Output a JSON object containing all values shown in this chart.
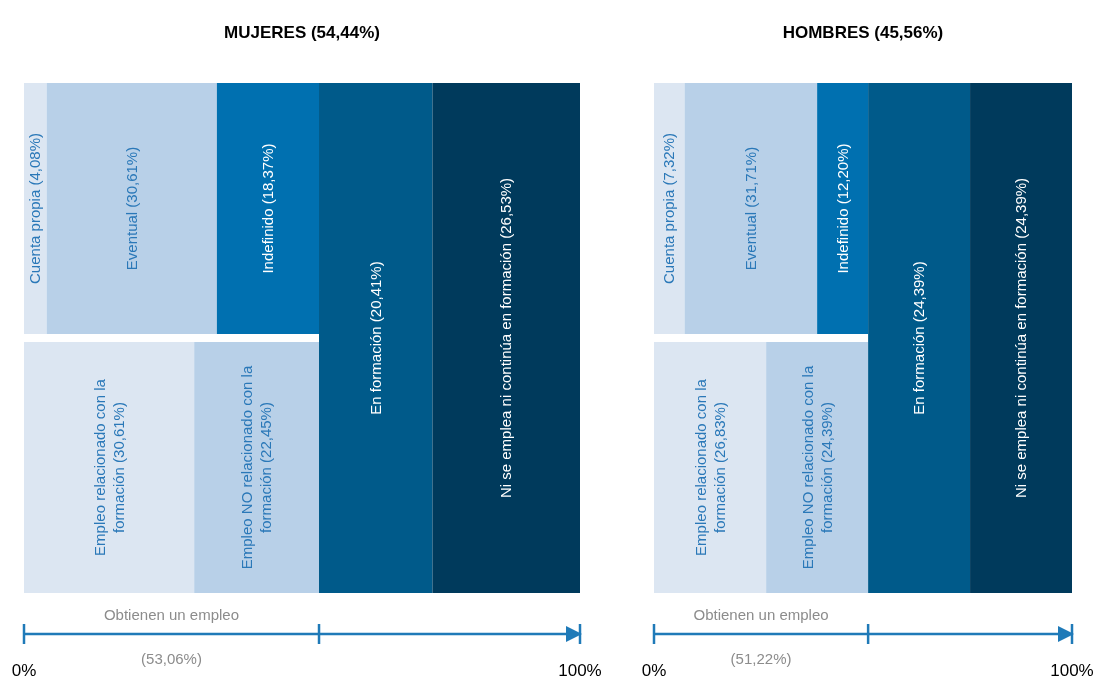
{
  "chart_data": [
    {
      "type": "other",
      "title": "MUJERES (54,44%)",
      "annotations": [
        "Obtienen un empleo",
        "(53,06%)",
        "0%",
        "100%"
      ],
      "categories": [
        "Cuenta propia",
        "Eventual",
        "Indefinido",
        "Empleo relacionado con la formación",
        "Empleo NO relacionado con la formación",
        "En formación",
        "Ni se emplea ni continúa en formación"
      ],
      "series": [
        {
          "values": [
            4.08,
            30.61,
            18.37,
            null,
            null,
            null,
            null
          ],
          "colors": [
            "#dce6f2",
            "#b8d0e8",
            "#0070b0",
            null,
            null,
            null,
            null
          ],
          "value_labels": [
            "(4,08%)",
            "(30,61%)",
            "(18,37%)",
            null,
            null,
            null,
            null
          ]
        },
        {
          "values": [
            null,
            null,
            null,
            30.61,
            22.45,
            null,
            null
          ],
          "colors": [
            null,
            null,
            null,
            "#dce6f2",
            "#b8d0e8",
            null,
            null
          ],
          "value_labels": [
            null,
            null,
            null,
            "(30,61%)",
            "(22,45%)",
            null,
            null
          ]
        },
        {
          "values": [
            null,
            null,
            null,
            null,
            null,
            20.41,
            26.53
          ],
          "colors": [
            null,
            null,
            null,
            null,
            null,
            "#005a8a",
            "#003a5c"
          ],
          "value_labels": [
            null,
            null,
            null,
            null,
            null,
            "(20,41%)",
            "(26,53%)"
          ]
        }
      ]
    },
    {
      "type": "other",
      "title": "HOMBRES (45,56%)",
      "annotations": [
        "Obtienen un empleo",
        "(51,22%)",
        "0%",
        "100%"
      ],
      "categories": [
        "Cuenta propia",
        "Eventual",
        "Indefinido",
        "Empleo relacionado con la formación",
        "Empleo NO relacionado con la formación",
        "En formación",
        "Ni se emplea ni continúa en formación"
      ],
      "series": [
        {
          "values": [
            7.32,
            31.71,
            12.2,
            null,
            null,
            null,
            null
          ],
          "colors": [
            "#dce6f2",
            "#b8d0e8",
            "#0070b0",
            null,
            null,
            null,
            null
          ],
          "value_labels": [
            "(7,32%)",
            "(31,71%)",
            "(12,20%)",
            null,
            null,
            null,
            null
          ]
        },
        {
          "values": [
            null,
            null,
            null,
            26.83,
            24.39,
            null,
            null
          ],
          "colors": [
            null,
            null,
            null,
            "#dce6f2",
            "#b8d0e8",
            null,
            null
          ],
          "value_labels": [
            null,
            null,
            null,
            "(26,83%)",
            "(24,39%)",
            null,
            null
          ]
        },
        {
          "values": [
            null,
            null,
            null,
            null,
            null,
            24.39,
            24.39
          ],
          "colors": [
            null,
            null,
            null,
            null,
            null,
            "#005a8a",
            "#003a5c"
          ],
          "value_labels": [
            null,
            null,
            null,
            null,
            null,
            "(24,39%)",
            "(24,39%)"
          ]
        }
      ]
    }
  ]
}
